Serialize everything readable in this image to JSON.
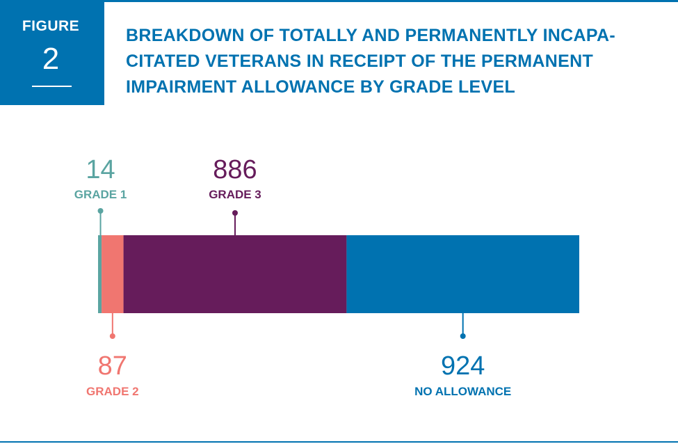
{
  "figure": {
    "label": "FIGURE",
    "number": "2"
  },
  "title_lines": [
    "BREAKDOWN OF TOTALLY AND PERMANENTLY INCAPA-",
    "CITATED VETERANS IN RECEIPT OF  THE PERMANENT",
    "IMPAIRMENT ALLOWANCE  BY GRADE LEVEL"
  ],
  "colors": {
    "accent": "#0072b0"
  },
  "chart_data": {
    "type": "bar",
    "orientation": "horizontal-stacked",
    "title": "BREAKDOWN OF TOTALLY AND PERMANENTLY INCAPACITATED VETERANS IN RECEIPT OF THE PERMANENT IMPAIRMENT ALLOWANCE BY GRADE LEVEL",
    "series": [
      {
        "name": "GRADE 1",
        "value": 14,
        "display": "14",
        "color": "#5aa4a1",
        "label_side": "top"
      },
      {
        "name": "GRADE 2",
        "value": 87,
        "display": "87",
        "color": "#f07670",
        "label_side": "bottom"
      },
      {
        "name": "GRADE 3",
        "value": 886,
        "display": "886",
        "color": "#661c5b",
        "label_side": "top"
      },
      {
        "name": "NO ALLOWANCE",
        "value": 924,
        "display": "924",
        "color": "#0072b0",
        "label_side": "bottom"
      }
    ]
  }
}
